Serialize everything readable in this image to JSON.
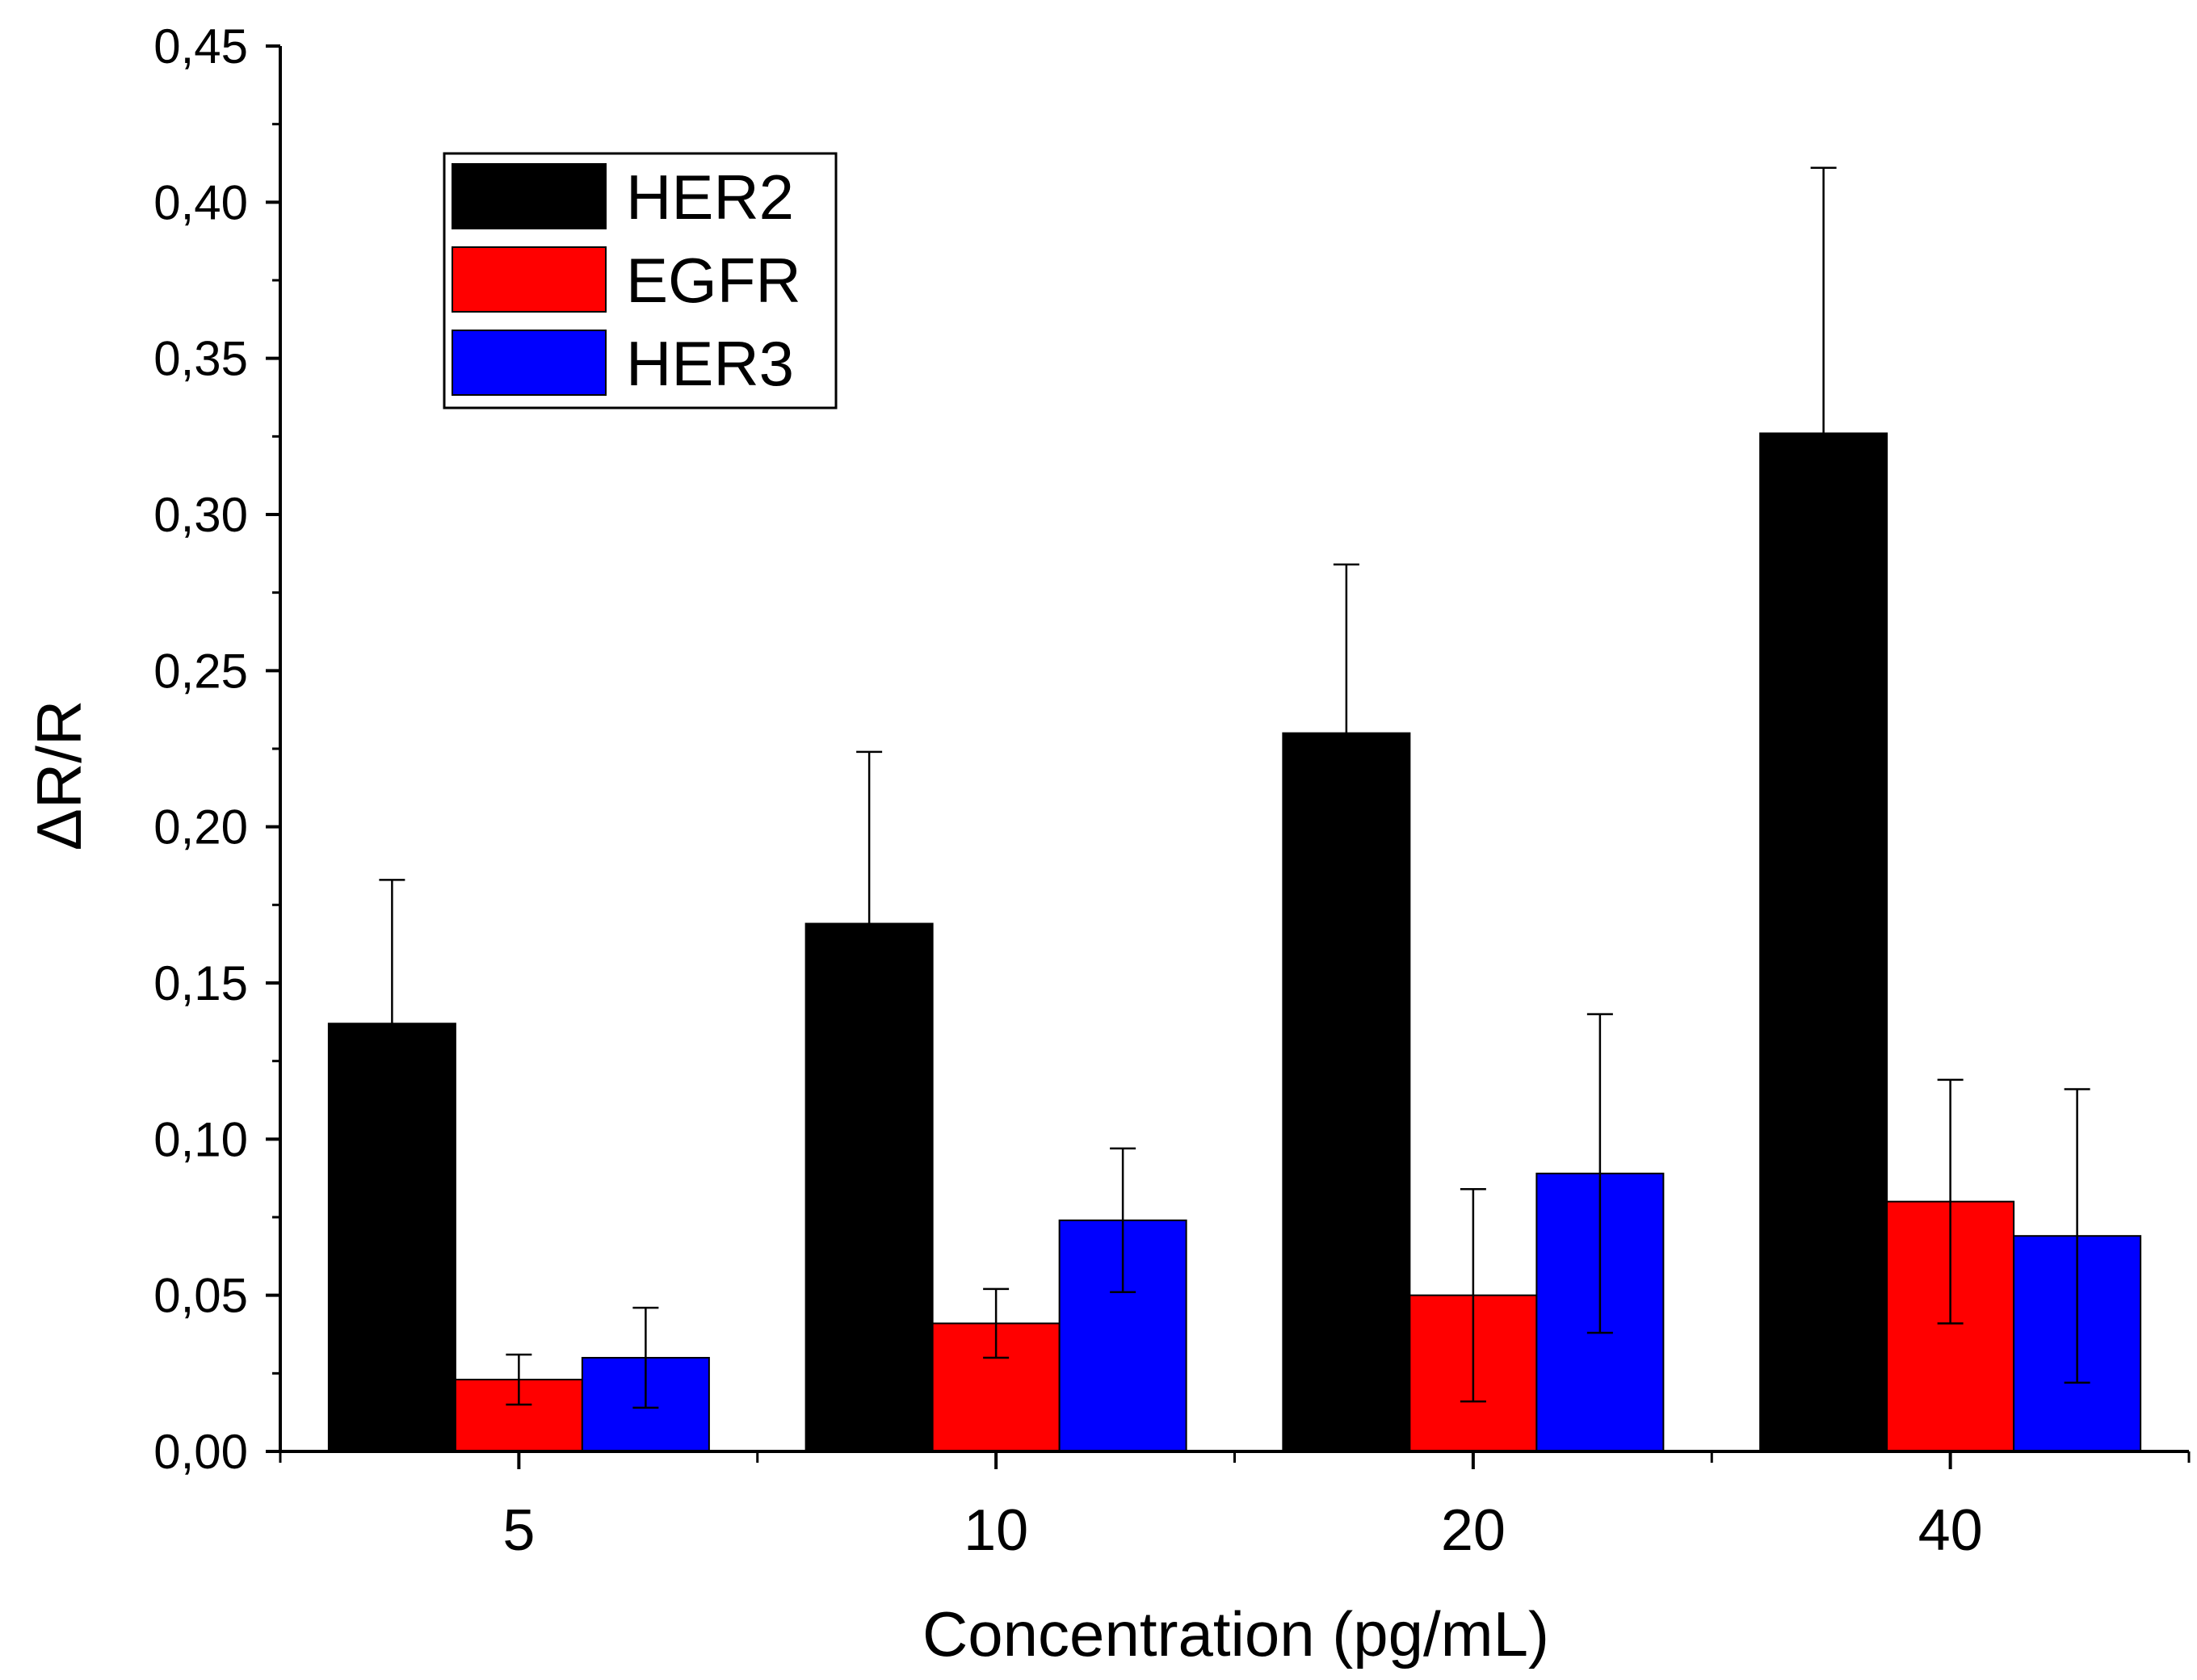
{
  "chart_data": {
    "type": "bar",
    "title": "",
    "xlabel": "Concentration (pg/mL)",
    "ylabel": "ΔR/R",
    "categories": [
      "5",
      "10",
      "20",
      "40"
    ],
    "ylim": [
      0,
      0.45
    ],
    "yticks": [
      "0,00",
      "0,05",
      "0,10",
      "0,15",
      "0,20",
      "0,25",
      "0,30",
      "0,35",
      "0,40",
      "0,45"
    ],
    "ytick_values": [
      0,
      0.05,
      0.1,
      0.15,
      0.2,
      0.25,
      0.3,
      0.35,
      0.4,
      0.45
    ],
    "legend_position": "top-left",
    "grid": false,
    "series": [
      {
        "name": "HER2",
        "color": "#000000",
        "values": [
          0.137,
          0.169,
          0.23,
          0.326
        ],
        "errors": [
          0.046,
          0.055,
          0.054,
          0.085
        ]
      },
      {
        "name": "EGFR",
        "color": "#ff0000",
        "values": [
          0.023,
          0.041,
          0.05,
          0.08
        ],
        "errors": [
          0.008,
          0.011,
          0.034,
          0.039
        ]
      },
      {
        "name": "HER3",
        "color": "#0000ff",
        "values": [
          0.03,
          0.074,
          0.089,
          0.069
        ],
        "errors": [
          0.016,
          0.023,
          0.051,
          0.047
        ]
      }
    ]
  }
}
